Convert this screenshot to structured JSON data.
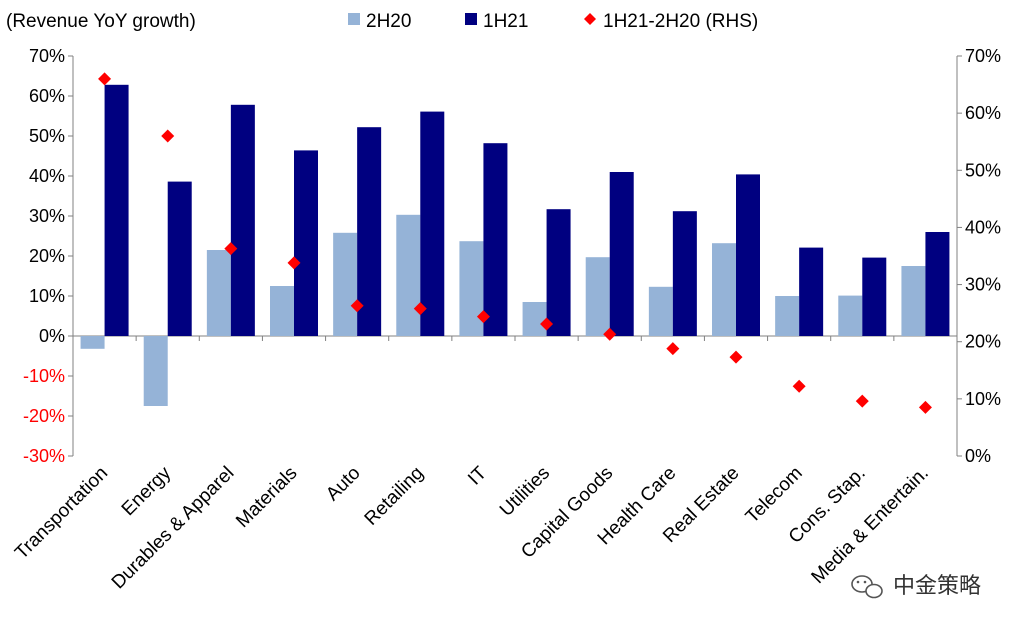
{
  "chart_data": {
    "type": "bar",
    "title": "(Revenue YoY growth)",
    "categories": [
      "Transportation",
      "Energy",
      "Durables & Apparel",
      "Materials",
      "Auto",
      "Retailing",
      "IT",
      "Utilities",
      "Capital Goods",
      "Health Care",
      "Real Estate",
      "Telecom",
      "Cons. Stap.",
      "Media & Entertain."
    ],
    "series": [
      {
        "name": "2H20",
        "axis": "left",
        "kind": "bar",
        "color": "#95b3d7",
        "values": [
          -3.2,
          -17.5,
          21.5,
          12.5,
          25.8,
          30.3,
          23.7,
          8.5,
          19.7,
          12.3,
          23.2,
          10.0,
          10.1,
          17.5
        ]
      },
      {
        "name": "1H21",
        "axis": "left",
        "kind": "bar",
        "color": "#000080",
        "values": [
          62.8,
          38.6,
          57.8,
          46.4,
          52.2,
          56.1,
          48.2,
          31.7,
          41.0,
          31.2,
          40.4,
          22.1,
          19.6,
          26.0
        ]
      },
      {
        "name": "1H21-2H20 (RHS)",
        "axis": "right",
        "kind": "scatter",
        "color": "#ff0000",
        "marker": "diamond",
        "values": [
          66.0,
          56.0,
          36.3,
          33.8,
          26.3,
          25.8,
          24.4,
          23.1,
          21.3,
          18.8,
          17.3,
          12.2,
          9.6,
          8.5
        ]
      }
    ],
    "yaxis_left": {
      "ylim": [
        -30,
        70
      ],
      "ticks": [
        -30,
        -20,
        -10,
        0,
        10,
        20,
        30,
        40,
        50,
        60,
        70
      ],
      "format": "percent",
      "negative_color": "#ff0000"
    },
    "yaxis_right": {
      "ylim": [
        0,
        70
      ],
      "ticks": [
        0,
        10,
        20,
        30,
        40,
        50,
        60,
        70
      ],
      "format": "percent"
    },
    "legend": {
      "placement": "top"
    },
    "grid": false
  },
  "watermark": {
    "text": "中金策略",
    "icon": "wechat-icon"
  }
}
